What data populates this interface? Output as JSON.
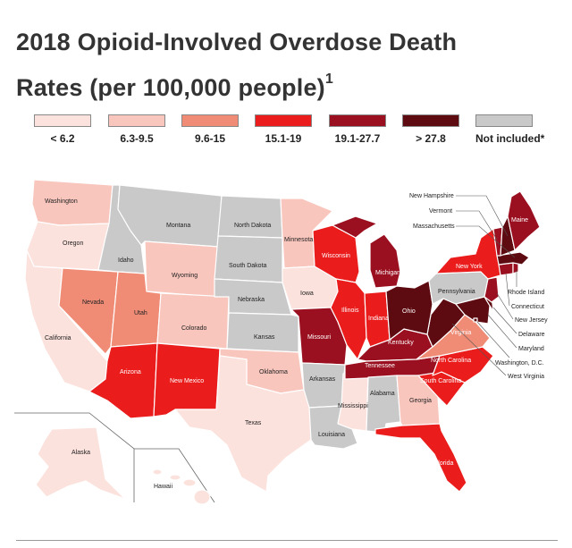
{
  "title_line1": "2018 Opioid-Involved Overdose Death",
  "title_line2": "Rates (per 100,000 people)",
  "title_footnote": "1",
  "legend": [
    {
      "label": "< 6.2",
      "color": "#fce2dd"
    },
    {
      "label": "6.3-9.5",
      "color": "#f9c6bd"
    },
    {
      "label": "9.6-15",
      "color": "#f08c76"
    },
    {
      "label": "15.1-19",
      "color": "#ea1c1c"
    },
    {
      "label": "19.1-27.7",
      "color": "#9b1020"
    },
    {
      "label": "> 27.8",
      "color": "#5d0a10"
    },
    {
      "label": "Not included*",
      "color": "#c9c9ca"
    }
  ],
  "states": {
    "WA": {
      "label": "Washington",
      "category": 1
    },
    "OR": {
      "label": "Oregon",
      "category": 0
    },
    "CA": {
      "label": "California",
      "category": 0
    },
    "NV": {
      "label": "Nevada",
      "category": 2
    },
    "ID": {
      "label": "Idaho",
      "category": 6
    },
    "MT": {
      "label": "Montana",
      "category": 6
    },
    "WY": {
      "label": "Wyoming",
      "category": 1
    },
    "UT": {
      "label": "Utah",
      "category": 2
    },
    "CO": {
      "label": "Colorado",
      "category": 1
    },
    "AZ": {
      "label": "Arizona",
      "category": 3
    },
    "NM": {
      "label": "New Mexico",
      "category": 3
    },
    "ND": {
      "label": "North Dakota",
      "category": 6
    },
    "SD": {
      "label": "South Dakota",
      "category": 6
    },
    "NE": {
      "label": "Nebraska",
      "category": 6
    },
    "KS": {
      "label": "Kansas",
      "category": 6
    },
    "OK": {
      "label": "Oklahoma",
      "category": 1
    },
    "TX": {
      "label": "Texas",
      "category": 0
    },
    "MN": {
      "label": "Minnesota",
      "category": 1
    },
    "IA": {
      "label": "Iowa",
      "category": 0
    },
    "MO": {
      "label": "Missouri",
      "category": 4
    },
    "AR": {
      "label": "Arkansas",
      "category": 6
    },
    "LA": {
      "label": "Louisiana",
      "category": 6
    },
    "WI": {
      "label": "Wisconsin",
      "category": 3
    },
    "IL": {
      "label": "Illinois",
      "category": 3
    },
    "MS": {
      "label": "Mississippi",
      "category": 0
    },
    "MI": {
      "label": "Michigan",
      "category": 4
    },
    "IN": {
      "label": "Indiana",
      "category": 3
    },
    "KY": {
      "label": "Kentucky",
      "category": 4
    },
    "TN": {
      "label": "Tennessee",
      "category": 4
    },
    "AL": {
      "label": "Alabama",
      "category": 6
    },
    "GA": {
      "label": "Georgia",
      "category": 1
    },
    "FL": {
      "label": "Florida",
      "category": 3
    },
    "OH": {
      "label": "Ohio",
      "category": 5
    },
    "WV": {
      "label": "West Virginia",
      "category": 5
    },
    "VA": {
      "label": "Virginia",
      "category": 2
    },
    "NC": {
      "label": "North Carolina",
      "category": 3
    },
    "SC": {
      "label": "South Carolina",
      "category": 3
    },
    "PA": {
      "label": "Pennsylvania",
      "category": 6
    },
    "NY": {
      "label": "New York",
      "category": 3
    },
    "ME": {
      "label": "Maine",
      "category": 4
    },
    "NH": {
      "label": "New Hampshire",
      "category": 5
    },
    "VT": {
      "label": "Vermont",
      "category": 4
    },
    "MA": {
      "label": "Massachusetts",
      "category": 5
    },
    "RI": {
      "label": "Rhode Island",
      "category": 4
    },
    "CT": {
      "label": "Connecticut",
      "category": 4
    },
    "NJ": {
      "label": "New Jersey",
      "category": 4
    },
    "DE": {
      "label": "Delaware",
      "category": 5
    },
    "MD": {
      "label": "Maryland",
      "category": 5
    },
    "DC": {
      "label": "Washington, D.C.",
      "category": 5
    },
    "AK": {
      "label": "Alaska",
      "category": 0
    },
    "HI": {
      "label": "Hawaii",
      "category": 0
    }
  }
}
